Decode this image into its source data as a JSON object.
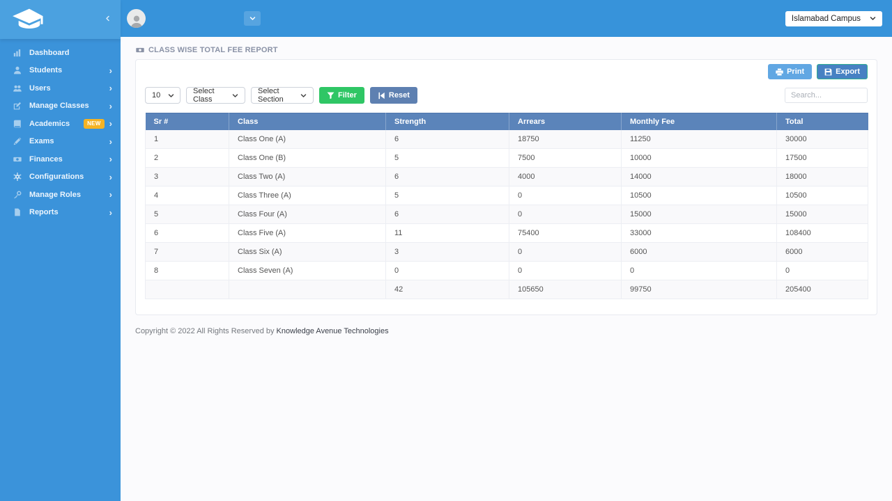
{
  "topbar": {
    "campus_selector": "Islamabad Campus"
  },
  "sidebar": {
    "items": [
      {
        "id": "dashboard",
        "label": "Dashboard",
        "icon": "bar-chart-icon",
        "has_children": false
      },
      {
        "id": "students",
        "label": "Students",
        "icon": "user-icon",
        "has_children": true
      },
      {
        "id": "users",
        "label": "Users",
        "icon": "users-icon",
        "has_children": true
      },
      {
        "id": "manage-classes",
        "label": "Manage Classes",
        "icon": "edit-icon",
        "has_children": true
      },
      {
        "id": "academics",
        "label": "Academics",
        "icon": "book-icon",
        "badge": "NEW",
        "has_children": true
      },
      {
        "id": "exams",
        "label": "Exams",
        "icon": "pencil-icon",
        "has_children": true
      },
      {
        "id": "finances",
        "label": "Finances",
        "icon": "banknote-icon",
        "has_children": true
      },
      {
        "id": "configurations",
        "label": "Configurations",
        "icon": "gear-icon",
        "has_children": true
      },
      {
        "id": "manage-roles",
        "label": "Manage Roles",
        "icon": "key-icon",
        "has_children": true
      },
      {
        "id": "reports",
        "label": "Reports",
        "icon": "file-icon",
        "has_children": true
      }
    ]
  },
  "page": {
    "title": "CLASS WISE TOTAL FEE REPORT",
    "title_icon": "cash-icon"
  },
  "toolbar": {
    "print": "Print",
    "export": "Export",
    "page_size": "10",
    "class_filter": "Select Class",
    "section_filter": "Select Section",
    "filter": "Filter",
    "reset": "Reset",
    "search_placeholder": "Search..."
  },
  "table": {
    "headers": [
      "Sr #",
      "Class",
      "Strength",
      "Arrears",
      "Monthly Fee",
      "Total"
    ],
    "rows": [
      [
        "1",
        "Class One (A)",
        "6",
        "18750",
        "11250",
        "30000"
      ],
      [
        "2",
        "Class One (B)",
        "5",
        "7500",
        "10000",
        "17500"
      ],
      [
        "3",
        "Class Two (A)",
        "6",
        "4000",
        "14000",
        "18000"
      ],
      [
        "4",
        "Class Three (A)",
        "5",
        "0",
        "10500",
        "10500"
      ],
      [
        "5",
        "Class Four (A)",
        "6",
        "0",
        "15000",
        "15000"
      ],
      [
        "6",
        "Class Five (A)",
        "11",
        "75400",
        "33000",
        "108400"
      ],
      [
        "7",
        "Class Six (A)",
        "3",
        "0",
        "6000",
        "6000"
      ],
      [
        "8",
        "Class Seven (A)",
        "0",
        "0",
        "0",
        "0"
      ]
    ],
    "totals": [
      "",
      "",
      "42",
      "105650",
      "99750",
      "205400"
    ]
  },
  "footer": {
    "copyright": "Copyright © 2022 All Rights Reserved by ",
    "company": "Knowledge Avenue Technologies"
  },
  "colors": {
    "brand_blue": "#3793da",
    "sidebar_blue": "#3b93da",
    "sidebar_logo_blue": "#4ba1e0",
    "table_header_blue": "#5b84ba",
    "filter_green": "#2fc665",
    "reset_slate": "#5e80b1",
    "print_blue": "#61a7e3",
    "export_blue": "#4781c3",
    "export_border": "#2fae92",
    "badge_yellow": "#f5b324"
  }
}
